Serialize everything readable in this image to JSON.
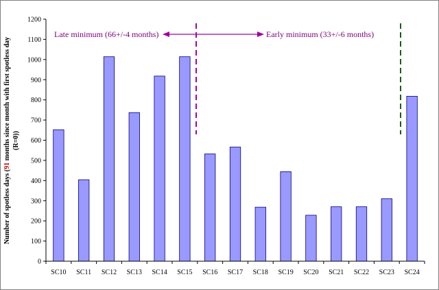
{
  "chart_data": {
    "type": "bar",
    "categories": [
      "SC10",
      "SC11",
      "SC12",
      "SC13",
      "SC14",
      "SC15",
      "SC16",
      "SC17",
      "SC18",
      "SC19",
      "SC20",
      "SC21",
      "SC22",
      "SC23",
      "SC24"
    ],
    "values": [
      652,
      404,
      1014,
      737,
      918,
      1014,
      532,
      566,
      268,
      444,
      228,
      270,
      270,
      310,
      818
    ],
    "ylim": [
      0,
      1200
    ],
    "yticks": [
      0,
      100,
      200,
      300,
      400,
      500,
      600,
      700,
      800,
      900,
      1000,
      1100,
      1200
    ],
    "ylabel_parts": [
      "Number of spotless days (",
      "91",
      " months since month with first spotless day"
    ],
    "ylabel_line2": "(R=0))",
    "annotations": {
      "late_minimum": "Late minimum (66+/-4 months)",
      "early_minimum": "Early minimum (33+/-6 months)"
    },
    "grid": false,
    "legend": "none",
    "colors": {
      "bar_fill": "#9999ff",
      "bar_stroke": "#000080",
      "annotation": "#7b007b",
      "arrow": "#a000a0",
      "dashed_purple": "#a000a0",
      "dashed_green": "#1a5c1a",
      "label_red": "#c00000"
    }
  }
}
